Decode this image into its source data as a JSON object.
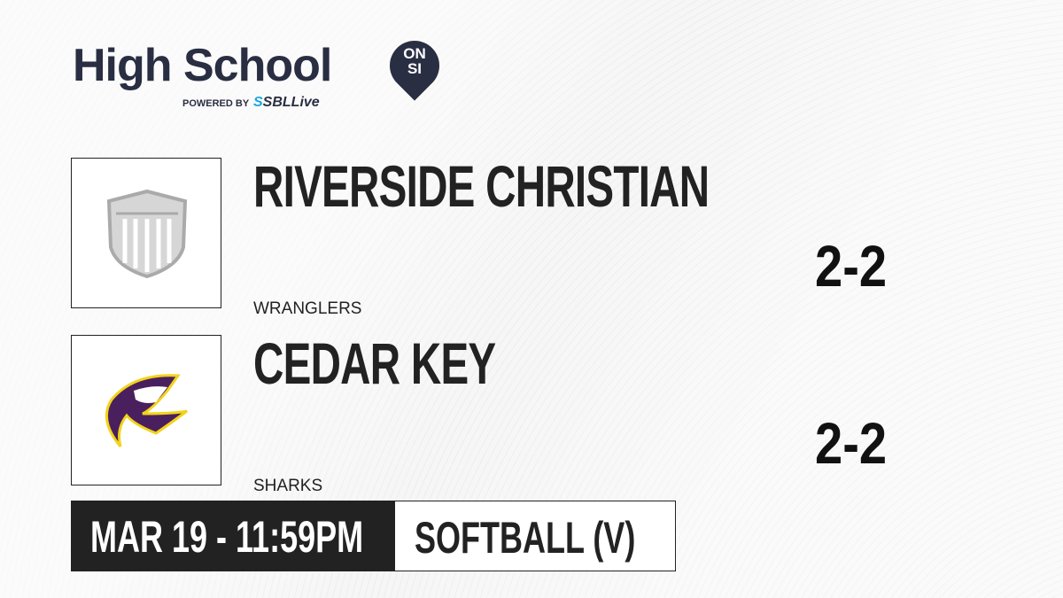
{
  "brand": {
    "title": "High School",
    "badge_line1": "ON",
    "badge_line2": "SI",
    "powered_by": "POWERED BY",
    "partner_a": "SBL",
    "partner_b": "ive",
    "partner_letter": "S"
  },
  "teams": [
    {
      "name": "RIVERSIDE CHRISTIAN",
      "mascot": "WRANGLERS",
      "record": "2-2",
      "logo": "shield-placeholder"
    },
    {
      "name": "CEDAR KEY",
      "mascot": "SHARKS",
      "record": "2-2",
      "logo": "shark-logo"
    }
  ],
  "game": {
    "datetime": "MAR 19 - 11:59PM",
    "sport": "SOFTBALL (V)"
  },
  "colors": {
    "brand_navy": "#2a2e42",
    "accent_blue": "#1aa6e0",
    "shark_purple": "#4a1f5e",
    "shark_yellow": "#f2d31b"
  }
}
